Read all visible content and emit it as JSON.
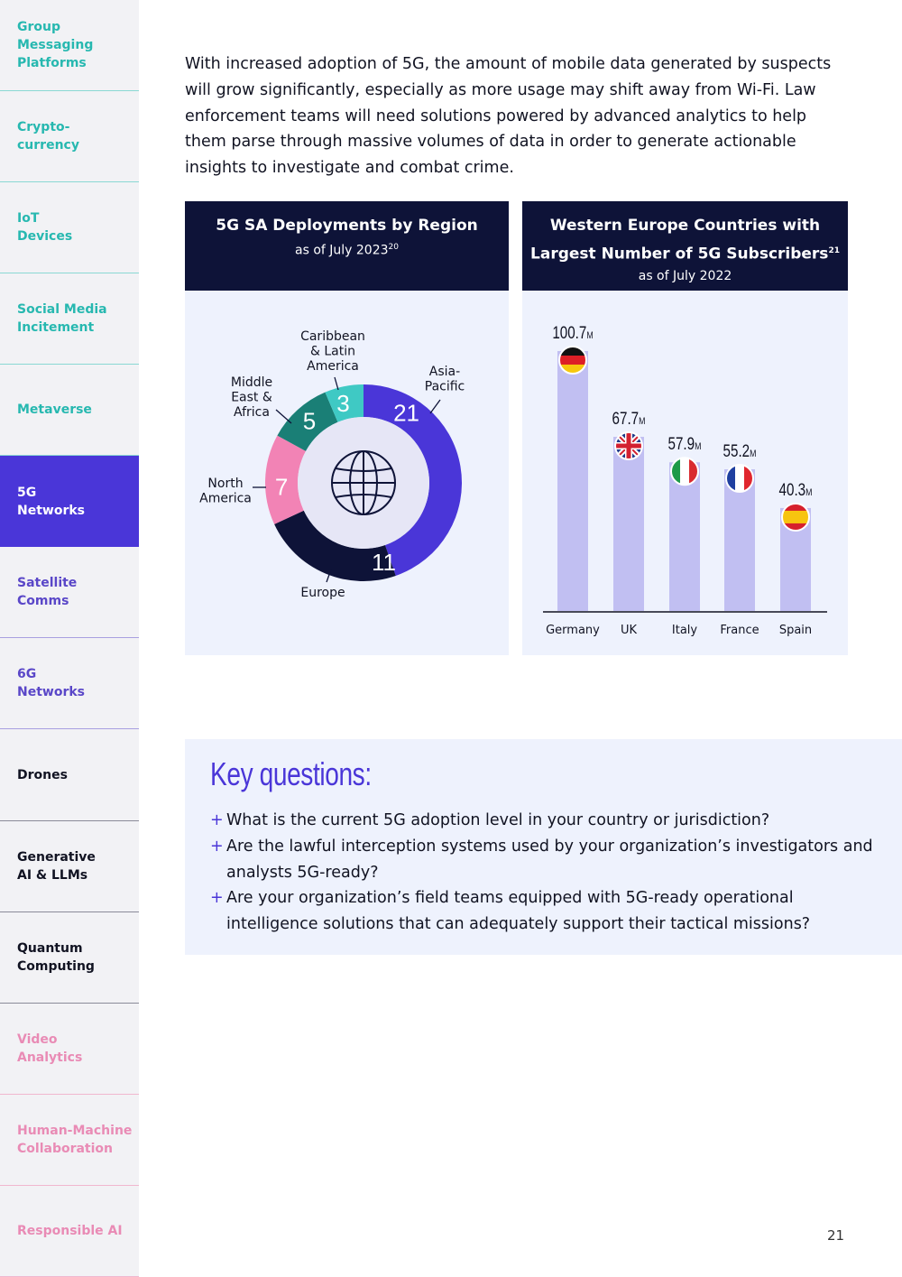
{
  "sidebar": {
    "items": [
      {
        "label": "Group\nMessaging\nPlatforms",
        "style": "teal"
      },
      {
        "label": "Crypto-\ncurrency",
        "style": "teal"
      },
      {
        "label": "IoT\nDevices",
        "style": "teal"
      },
      {
        "label": "Social Media\nIncitement",
        "style": "teal"
      },
      {
        "label": "Metaverse",
        "style": "teal"
      },
      {
        "label": "5G\nNetworks",
        "style": "active"
      },
      {
        "label": "Satellite\nComms",
        "style": "purple"
      },
      {
        "label": "6G\nNetworks",
        "style": "purple"
      },
      {
        "label": "Drones",
        "style": "dark"
      },
      {
        "label": "Generative\nAI & LLMs",
        "style": "dark"
      },
      {
        "label": "Quantum\nComputing",
        "style": "dark"
      },
      {
        "label": "Video\nAnalytics",
        "style": "pink"
      },
      {
        "label": "Human-Machine\nCollaboration",
        "style": "pink"
      },
      {
        "label": "Responsible AI",
        "style": "pink"
      }
    ]
  },
  "intro": "With increased adoption of 5G, the amount of mobile data generated by suspects will grow significantly, especially as more usage may shift away from Wi-Fi. Law enforcement teams will need solutions powered by advanced analytics to help them parse through massive volumes of data in order to generate actionable insights to investigate and combat crime.",
  "chart_left": {
    "title": "5G SA Deployments by Region",
    "subtitle": "as of July 2023",
    "footnote": "20"
  },
  "chart_right": {
    "title_line1": "Western Europe Countries with",
    "title_line2": "Largest Number of 5G Subscribers",
    "footnote": "21",
    "subtitle": "as of July 2022"
  },
  "chart_data": [
    {
      "type": "pie",
      "title": "5G SA Deployments by Region",
      "subtitle": "as of July 2023",
      "categories": [
        "Asia-Pacific",
        "Europe",
        "North America",
        "Middle East & Africa",
        "Caribbean & Latin America"
      ],
      "values": [
        21,
        11,
        7,
        5,
        3
      ],
      "colors": [
        "#4a36d8",
        "#0e1338",
        "#f283b5",
        "#1a7f76",
        "#3fc9c4"
      ],
      "center_icon": "globe-icon"
    },
    {
      "type": "bar",
      "title": "Western Europe Countries with Largest Number of 5G Subscribers",
      "subtitle": "as of July 2022",
      "categories": [
        "Germany",
        "UK",
        "Italy",
        "France",
        "Spain"
      ],
      "values": [
        100.7,
        67.7,
        57.9,
        55.2,
        40.3
      ],
      "value_labels": [
        "100.7",
        "67.7",
        "57.9",
        "55.2",
        "40.3"
      ],
      "unit": "M",
      "flag_icons": [
        "germany-flag-icon",
        "uk-flag-icon",
        "italy-flag-icon",
        "france-flag-icon",
        "spain-flag-icon"
      ],
      "bar_color": "#c1bff2"
    }
  ],
  "key_questions": {
    "title": "Key questions:",
    "items": [
      "What is the current 5G adoption level in your country or jurisdiction?",
      "Are the lawful interception systems used by your organization’s investigators and analysts 5G-ready?",
      "Are your organization’s field teams equipped with 5G-ready operational intelligence solutions that can adequately support their tactical missions?"
    ]
  },
  "page_number": "21"
}
